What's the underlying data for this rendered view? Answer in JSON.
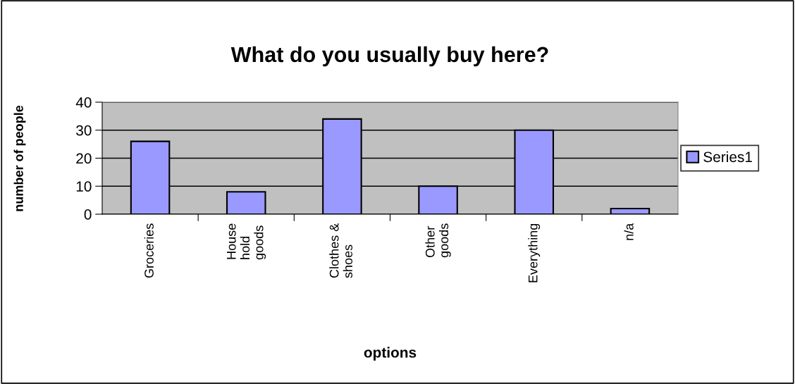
{
  "chart_data": {
    "type": "bar",
    "title": "What do you usually buy here?",
    "xlabel": "options",
    "ylabel": "number of people",
    "categories": [
      "Groceries",
      "House\nhold\ngoods",
      "Clothes &\nshoes",
      "Other\ngoods",
      "Everything",
      "n/a"
    ],
    "series": [
      {
        "name": "Series1",
        "color": "#9999ff",
        "values": [
          26,
          8,
          34,
          10,
          30,
          2
        ]
      }
    ],
    "ylim": [
      0,
      40
    ],
    "yticks": [
      0,
      10,
      20,
      30,
      40
    ],
    "grid": "y",
    "legend": "right"
  }
}
